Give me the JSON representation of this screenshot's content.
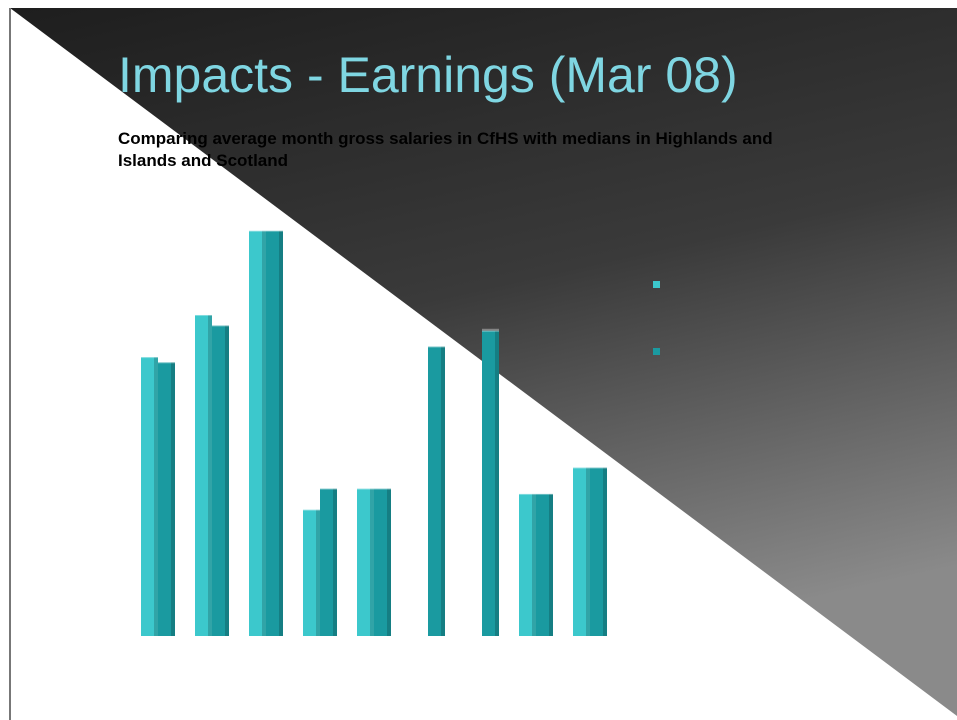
{
  "chart_data": {
    "type": "bar",
    "title": "Impacts - Earnings (Mar 08)",
    "subtitle": "Comparing average month gross salaries in CfHS with medians in Highlands and Islands and Scotland",
    "categories": [
      null,
      null,
      null,
      null,
      null,
      null,
      null,
      null,
      null
    ],
    "series": [
      {
        "color": "#3cc8cc",
        "values": [
          5.3,
          6.1,
          7.7,
          2.4,
          2.8,
          null,
          null,
          2.7,
          3.2
        ]
      },
      {
        "color": "#1a9aa0",
        "values": [
          5.2,
          5.9,
          7.7,
          2.8,
          2.8,
          5.5,
          5.8,
          2.7,
          3.2
        ]
      }
    ],
    "ylim": [
      0,
      8
    ],
    "grid": true
  }
}
